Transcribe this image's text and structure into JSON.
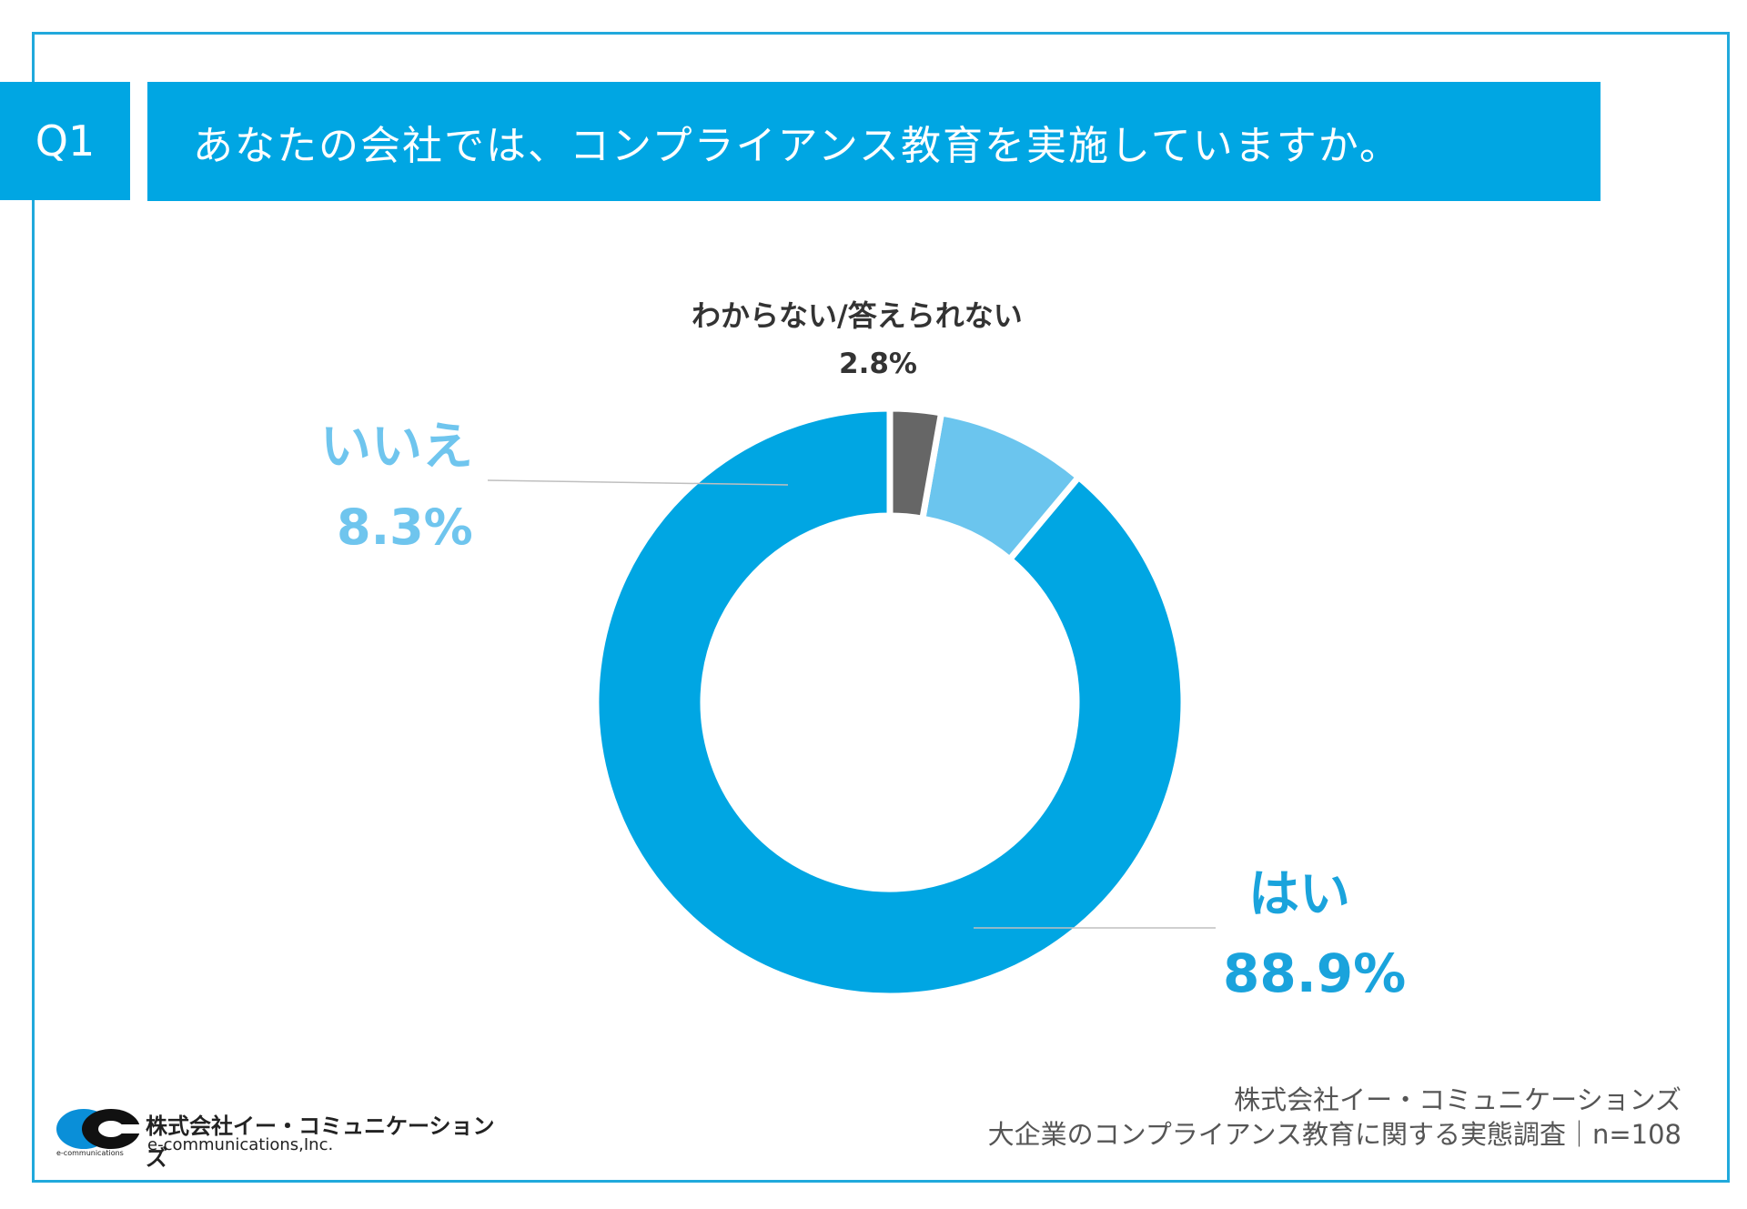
{
  "question": {
    "badge": "Q1",
    "text": "あなたの会社では、コンプライアンス教育を実施していますか。"
  },
  "chart_data": {
    "type": "pie",
    "variant": "donut",
    "title": "あなたの会社では、コンプライアンス教育を実施していますか。",
    "categories": [
      "はい",
      "いいえ",
      "わからない/答えられない"
    ],
    "values": [
      88.9,
      8.3,
      2.8
    ],
    "value_labels": [
      "88.9%",
      "8.3%",
      "2.8%"
    ],
    "colors": [
      "#00a6e3",
      "#6bc5ee",
      "#666666"
    ],
    "label_colors": [
      "#1aa3dc",
      "#6fc5ee",
      "#333333"
    ],
    "start_angle": "12 o'clock",
    "direction": "counterclockwise"
  },
  "footer": {
    "company": "株式会社イー・コミュニケーションズ",
    "survey": "大企業のコンプライアンス教育に関する実態調査｜n=108"
  },
  "logo": {
    "name_jp": "株式会社イー・コミュニケーションズ",
    "name_en": "e-communications,Inc.",
    "tiny": "e-communications"
  }
}
